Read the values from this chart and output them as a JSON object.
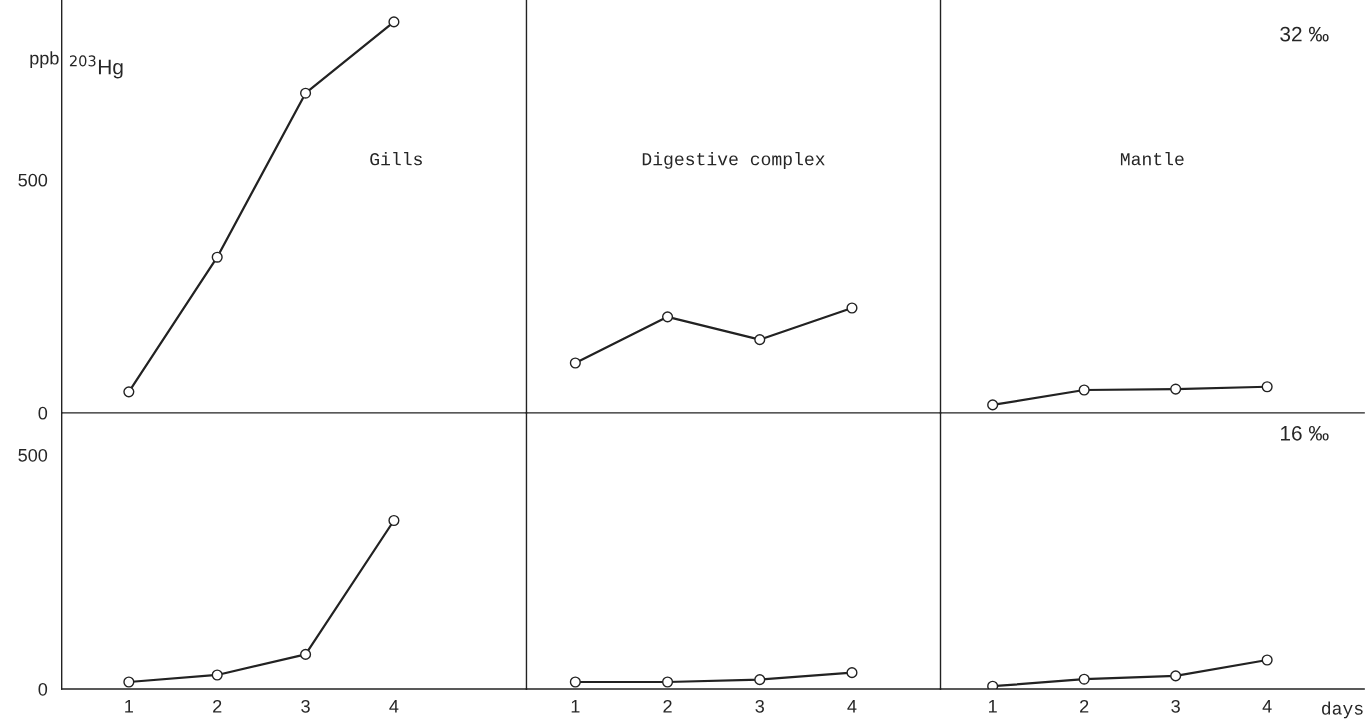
{
  "chart_data": [
    {
      "type": "line",
      "title": "Gills",
      "ylabel": "ppb",
      "annotations": [
        "$^{203}$Hg"
      ],
      "x": [
        1,
        2,
        3,
        4
      ],
      "values": [
        45,
        334,
        686,
        839
      ],
      "color": "#222222",
      "marker": "circle",
      "xlim": [
        0.24,
        5.5
      ],
      "ylim": [
        0,
        886
      ],
      "yticks": [
        0,
        500
      ],
      "tick_labels": "y"
    },
    {
      "type": "line",
      "title": "Digestive complex",
      "x": [
        1,
        2,
        3,
        4
      ],
      "values": [
        107,
        206,
        157,
        225
      ],
      "color": "#222222",
      "marker": "circle",
      "xlim": [
        0.47,
        4.96
      ],
      "ylim": [
        0,
        886
      ],
      "tick_labels": false
    },
    {
      "type": "line",
      "title": "Mantle",
      "annotations": [
        "32 ‰"
      ],
      "x": [
        1,
        2,
        3,
        4
      ],
      "values": [
        17,
        49,
        51,
        56
      ],
      "color": "#222222",
      "marker": "circle",
      "xlim": [
        0.43,
        5.06
      ],
      "ylim": [
        0,
        886
      ],
      "tick_labels": false
    },
    {
      "type": "line",
      "x": [
        1,
        2,
        3,
        4
      ],
      "values": [
        15,
        30,
        74,
        360
      ],
      "color": "#222222",
      "marker": "circle",
      "xlim": [
        0.24,
        5.5
      ],
      "ylim": [
        0,
        590
      ],
      "xticks": [
        1,
        2,
        3,
        4
      ],
      "yticks": [
        0,
        500
      ]
    },
    {
      "type": "line",
      "x": [
        1,
        2,
        3,
        4
      ],
      "values": [
        15,
        15,
        20,
        35
      ],
      "color": "#222222",
      "marker": "circle",
      "xlim": [
        0.47,
        4.96
      ],
      "ylim": [
        0,
        590
      ],
      "xticks": [
        1,
        2,
        3,
        4
      ],
      "tick_labels": "x"
    },
    {
      "type": "line",
      "xlabel": "days",
      "annotations": [
        "16 ‰"
      ],
      "x": [
        1,
        2,
        3,
        4
      ],
      "values": [
        6,
        21,
        28,
        62
      ],
      "color": "#222222",
      "marker": "circle",
      "xlim": [
        0.43,
        5.06
      ],
      "ylim": [
        0,
        590
      ],
      "xticks": [
        1,
        2,
        3,
        4
      ],
      "tick_labels": "x"
    }
  ]
}
